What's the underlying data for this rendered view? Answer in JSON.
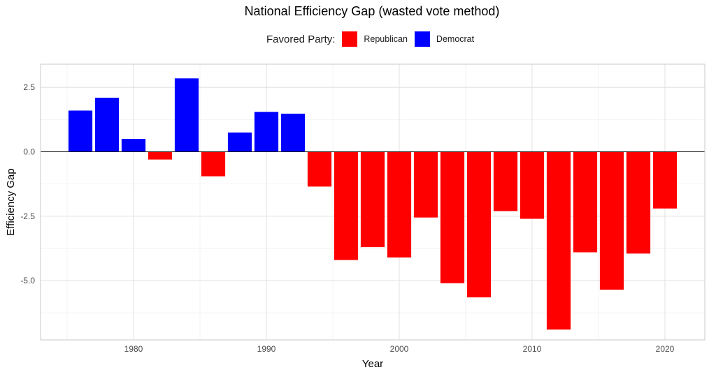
{
  "chart_data": {
    "type": "bar",
    "title": "National Efficiency Gap (wasted vote method)",
    "xlabel": "Year",
    "ylabel": "Efficiency Gap",
    "legend": {
      "title": "Favored Party:",
      "placement": "top",
      "entries": [
        {
          "label": "Republican",
          "color": "#ff0000"
        },
        {
          "label": "Democrat",
          "color": "#0000ff"
        }
      ]
    },
    "x_ticks": [
      1980,
      1990,
      2000,
      2010,
      2020
    ],
    "y_ticks": [
      2.5,
      0,
      -2.5,
      -5
    ],
    "y_tick_labels": [
      "2.5",
      "0.0",
      "-2.5",
      "-5.0"
    ],
    "xlim": [
      1973,
      2023
    ],
    "ylim": [
      -7.3,
      3.4
    ],
    "grid": true,
    "x": [
      1976,
      1978,
      1980,
      1982,
      1984,
      1986,
      1988,
      1990,
      1992,
      1994,
      1996,
      1998,
      2000,
      2002,
      2004,
      2006,
      2008,
      2010,
      2012,
      2014,
      2016,
      2018,
      2020
    ],
    "values": [
      1.6,
      2.1,
      0.5,
      -0.3,
      2.85,
      -0.95,
      0.75,
      1.55,
      1.48,
      -1.35,
      -4.2,
      -3.7,
      -4.1,
      -2.55,
      -5.1,
      -5.65,
      -2.3,
      -2.6,
      -6.9,
      -3.9,
      -5.35,
      -3.95,
      -2.2
    ],
    "favored": [
      "Democrat",
      "Democrat",
      "Democrat",
      "Republican",
      "Democrat",
      "Republican",
      "Democrat",
      "Democrat",
      "Democrat",
      "Republican",
      "Republican",
      "Republican",
      "Republican",
      "Republican",
      "Republican",
      "Republican",
      "Republican",
      "Republican",
      "Republican",
      "Republican",
      "Republican",
      "Republican",
      "Republican"
    ],
    "colors": {
      "Republican": "#ff0000",
      "Democrat": "#0000ff"
    }
  }
}
